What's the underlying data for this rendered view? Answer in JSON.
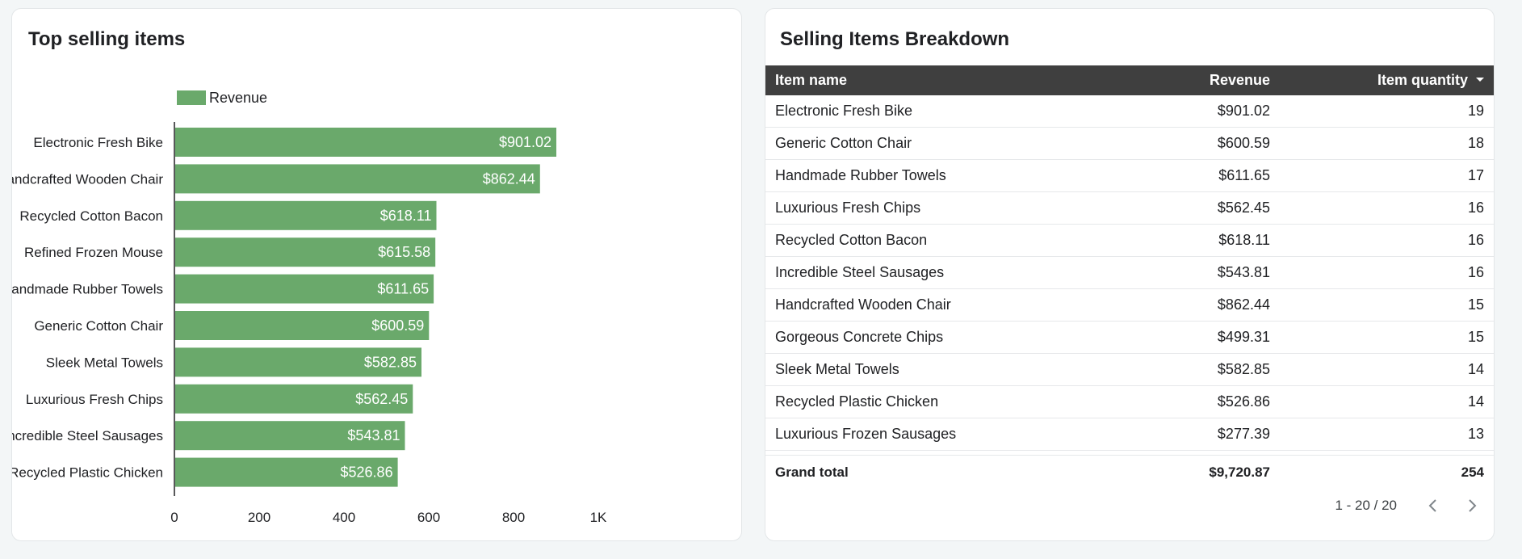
{
  "colors": {
    "bar": "#6aa96b",
    "header_bg": "#3f3f3f",
    "axis": "#202124"
  },
  "left_card": {
    "title": "Top selling items"
  },
  "chart_data": {
    "type": "bar",
    "orientation": "horizontal",
    "legend": {
      "label": "Revenue",
      "placement": "top-left"
    },
    "categories": [
      "Electronic Fresh Bike",
      "Handcrafted Wooden Chair",
      "Recycled Cotton Bacon",
      "Refined Frozen Mouse",
      "Handmade Rubber Towels",
      "Generic Cotton Chair",
      "Sleek Metal Towels",
      "Luxurious Fresh Chips",
      "Incredible Steel Sausages",
      "Recycled Plastic Chicken"
    ],
    "series": [
      {
        "name": "Revenue",
        "values": [
          901.02,
          862.44,
          618.11,
          615.58,
          611.65,
          600.59,
          582.85,
          562.45,
          543.81,
          526.86
        ],
        "labels": [
          "$901.02",
          "$862.44",
          "$618.11",
          "$615.58",
          "$611.65",
          "$600.59",
          "$582.85",
          "$562.45",
          "$543.81",
          "$526.86"
        ]
      }
    ],
    "xlim": [
      0,
      1000
    ],
    "xticks": [
      0,
      200,
      400,
      600,
      800,
      1000
    ],
    "xtick_labels": [
      "0",
      "200",
      "400",
      "600",
      "800",
      "1K"
    ],
    "grid": false
  },
  "right_card": {
    "title": "Selling Items Breakdown",
    "columns": {
      "name": "Item name",
      "revenue": "Revenue",
      "quantity": "Item quantity"
    },
    "sort_icon": "sort-descending-icon",
    "rows": [
      {
        "name": "Electronic Fresh Bike",
        "revenue": "$901.02",
        "quantity": "19"
      },
      {
        "name": "Generic Cotton Chair",
        "revenue": "$600.59",
        "quantity": "18"
      },
      {
        "name": "Handmade Rubber Towels",
        "revenue": "$611.65",
        "quantity": "17"
      },
      {
        "name": "Luxurious Fresh Chips",
        "revenue": "$562.45",
        "quantity": "16"
      },
      {
        "name": "Recycled Cotton Bacon",
        "revenue": "$618.11",
        "quantity": "16"
      },
      {
        "name": "Incredible Steel Sausages",
        "revenue": "$543.81",
        "quantity": "16"
      },
      {
        "name": "Handcrafted Wooden Chair",
        "revenue": "$862.44",
        "quantity": "15"
      },
      {
        "name": "Gorgeous Concrete Chips",
        "revenue": "$499.31",
        "quantity": "15"
      },
      {
        "name": "Sleek Metal Towels",
        "revenue": "$582.85",
        "quantity": "14"
      },
      {
        "name": "Recycled Plastic Chicken",
        "revenue": "$526.86",
        "quantity": "14"
      },
      {
        "name": "Luxurious Frozen Sausages",
        "revenue": "$277.39",
        "quantity": "13"
      }
    ],
    "total": {
      "label": "Grand total",
      "revenue": "$9,720.87",
      "quantity": "254"
    },
    "pagination": {
      "text": "1 - 20 / 20",
      "prev_icon": "chevron-left-icon",
      "next_icon": "chevron-right-icon"
    }
  }
}
